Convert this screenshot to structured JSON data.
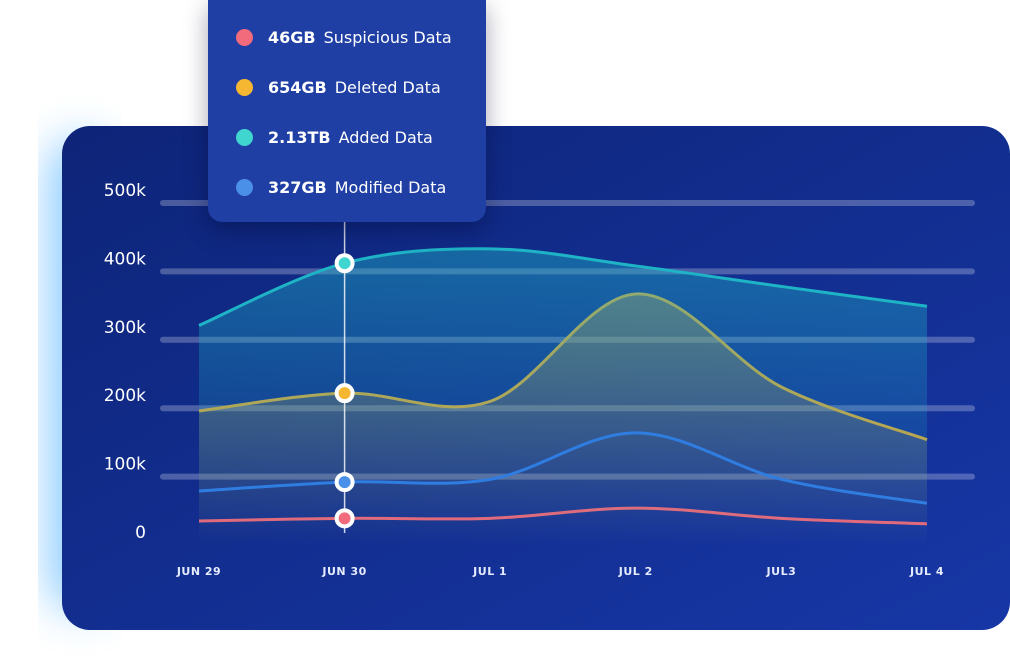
{
  "chart_data": {
    "type": "line",
    "categories": [
      "JUN 29",
      "JUN 30",
      "JUL 1",
      "JUL 2",
      "JUL3",
      "JUL 4"
    ],
    "ylim": [
      0,
      500000
    ],
    "yticks": [
      {
        "value": 0,
        "label": "0"
      },
      {
        "value": 100000,
        "label": "100k"
      },
      {
        "value": 200000,
        "label": "200k"
      },
      {
        "value": 300000,
        "label": "300k"
      },
      {
        "value": 400000,
        "label": "400k"
      },
      {
        "value": 500000,
        "label": "500k"
      }
    ],
    "grid": true,
    "highlight_index": 1,
    "series": [
      {
        "name": "Suspicious Data",
        "tooltip_value": "46GB",
        "color": "#e8657c",
        "dot": "#f26b7d",
        "area": false,
        "values": [
          35000,
          39000,
          39000,
          54000,
          39000,
          31000
        ]
      },
      {
        "name": "Deleted Data",
        "tooltip_value": "654GB",
        "color": "#d6a43a",
        "dot": "#f5b731",
        "area": true,
        "values": [
          196000,
          222000,
          210000,
          367000,
          231000,
          154000
        ]
      },
      {
        "name": "Added Data",
        "tooltip_value": "2.13TB",
        "color": "#1fb3c6",
        "dot": "#3fd6d0",
        "area": true,
        "values": [
          321000,
          412000,
          433000,
          408000,
          378000,
          349000
        ]
      },
      {
        "name": "Modified Data",
        "tooltip_value": "327GB",
        "color": "#2f7de1",
        "dot": "#4a8fe8",
        "area": false,
        "values": [
          79000,
          92000,
          96000,
          164000,
          96000,
          61000
        ]
      }
    ]
  }
}
